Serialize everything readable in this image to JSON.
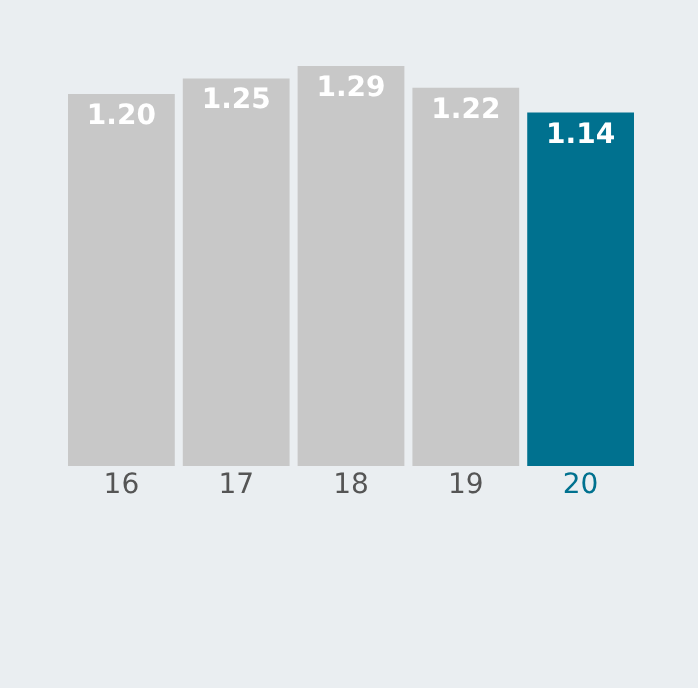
{
  "chart_data": {
    "type": "bar",
    "categories": [
      "16",
      "17",
      "18",
      "19",
      "20"
    ],
    "values": [
      1.2,
      1.25,
      1.29,
      1.22,
      1.14
    ],
    "value_labels": [
      "1.20",
      "1.25",
      "1.29",
      "1.22",
      "1.14"
    ],
    "colors": [
      "#c8c8c8",
      "#c8c8c8",
      "#c8c8c8",
      "#c8c8c8",
      "#00718f"
    ]
  }
}
